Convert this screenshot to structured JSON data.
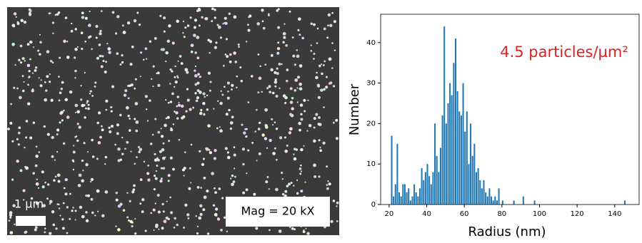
{
  "image": {
    "scale_label": "1 µm",
    "magnification_label": "Mag = 20 kX"
  },
  "chart_data": {
    "type": "histogram",
    "color": "#1f77b4",
    "annotation": "4.5 particles/µm²",
    "xlabel": "Radius (nm)",
    "ylabel": "Number",
    "bins": [
      20,
      21,
      22,
      23,
      24,
      25,
      26,
      27,
      28,
      29,
      30,
      31,
      32,
      33,
      34,
      35,
      36,
      37,
      38,
      39,
      40,
      41,
      42,
      43,
      44,
      45,
      46,
      47,
      48,
      49,
      50,
      51,
      52,
      53,
      54,
      55,
      56,
      57,
      58,
      59,
      60,
      61,
      62,
      63,
      64,
      65,
      66,
      67,
      68,
      69,
      70,
      71,
      72,
      73,
      74,
      75,
      76,
      77,
      78,
      79,
      80,
      81,
      82,
      83,
      84,
      85,
      86,
      87,
      88,
      89,
      90,
      91,
      92,
      93,
      94,
      95,
      96,
      97,
      98,
      99,
      100,
      101,
      102,
      103,
      104,
      105,
      106,
      107,
      108,
      109,
      110,
      111,
      112,
      113,
      114,
      115,
      116,
      117,
      118,
      119,
      120,
      121,
      122,
      123,
      124,
      125,
      126,
      127,
      128,
      129,
      130,
      131,
      132,
      133,
      134,
      135,
      136,
      137,
      138,
      139,
      140,
      141,
      142,
      143,
      144,
      145,
      146
    ],
    "values": [
      0,
      17,
      2,
      5,
      15,
      3,
      2,
      5,
      5,
      3,
      4,
      1,
      2,
      5,
      3,
      2,
      4,
      9,
      6,
      8,
      10,
      7,
      5,
      8,
      20,
      12,
      8,
      14,
      22,
      44,
      20,
      25,
      30,
      27,
      35,
      41,
      28,
      23,
      22,
      30,
      18,
      23,
      10,
      20,
      12,
      15,
      8,
      9,
      6,
      4,
      6,
      3,
      2,
      4,
      2,
      1,
      2,
      1,
      4,
      0,
      1,
      0,
      0,
      0,
      0,
      0,
      1,
      0,
      0,
      0,
      0,
      2,
      0,
      0,
      0,
      0,
      0,
      1,
      0,
      0,
      0,
      0,
      0,
      0,
      0,
      0,
      0,
      0,
      0,
      0,
      0,
      0,
      0,
      0,
      0,
      0,
      0,
      0,
      0,
      0,
      0,
      0,
      0,
      0,
      0,
      0,
      0,
      0,
      0,
      0,
      0,
      0,
      0,
      0,
      0,
      0,
      0,
      0,
      0,
      0,
      0,
      0,
      0,
      0,
      0,
      1
    ],
    "xlim": [
      15.5,
      153
    ],
    "ylim": [
      0,
      47
    ],
    "xticks": [
      20,
      40,
      60,
      80,
      100,
      120,
      140
    ],
    "yticks": [
      0,
      10,
      20,
      30,
      40
    ]
  }
}
